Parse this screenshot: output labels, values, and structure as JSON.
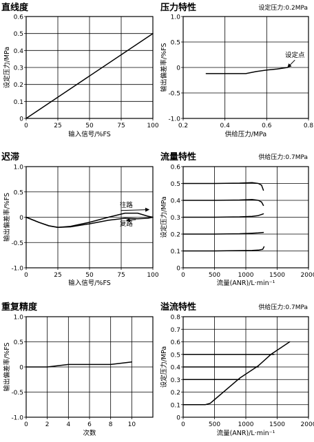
{
  "chart_data": [
    {
      "id": "linearity",
      "type": "line",
      "title": "直线度",
      "condition": "",
      "xlabel": "输入信号/%FS",
      "ylabel": "设定压力/MPa",
      "xlim": [
        0,
        100
      ],
      "ylim": [
        0,
        0.6
      ],
      "xticks": [
        "0",
        "25",
        "50",
        "75",
        "100"
      ],
      "yticks": [
        "0",
        "0.1",
        "0.2",
        "0.3",
        "0.4",
        "0.5",
        "0.6"
      ],
      "grid": true,
      "series": [
        {
          "points": [
            [
              0,
              0.0
            ],
            [
              100,
              0.5
            ]
          ]
        }
      ],
      "annotations": []
    },
    {
      "id": "pressure",
      "type": "line",
      "title": "压力特性",
      "condition": "设定压力:0.2MPa",
      "xlabel": "供给压力/MPa",
      "ylabel": "输出偏差率/%FS",
      "xlim": [
        0.2,
        0.8
      ],
      "ylim": [
        -1.0,
        1.0
      ],
      "xticks": [
        "0.2",
        "0.4",
        "0.6",
        "0.8"
      ],
      "yticks": [
        "-1.0",
        "-0.5",
        "0",
        "0.5",
        "1.0"
      ],
      "grid": true,
      "series": [
        {
          "points": [
            [
              0.31,
              -0.12
            ],
            [
              0.5,
              -0.12
            ],
            [
              0.55,
              -0.08
            ],
            [
              0.6,
              -0.05
            ],
            [
              0.65,
              -0.03
            ],
            [
              0.7,
              0.0
            ]
          ]
        }
      ],
      "annotations": [
        {
          "text": "设定点",
          "at": [
            0.7,
            0.0
          ],
          "text_at": [
            0.735,
            0.2
          ]
        }
      ]
    },
    {
      "id": "hysteresis",
      "type": "line",
      "title": "迟滞",
      "condition": "",
      "xlabel": "输入信号/%FS",
      "ylabel": "输出偏差率/%FS",
      "xlim": [
        0,
        100
      ],
      "ylim": [
        -1.0,
        1.0
      ],
      "xticks": [
        "0",
        "25",
        "50",
        "75",
        "100"
      ],
      "yticks": [
        "-1.0",
        "-0.5",
        "0",
        "0.5",
        "1.0"
      ],
      "grid": true,
      "series": [
        {
          "points": [
            [
              0,
              0.0
            ],
            [
              10,
              -0.1
            ],
            [
              18,
              -0.17
            ],
            [
              25,
              -0.2
            ],
            [
              35,
              -0.18
            ],
            [
              50,
              -0.1
            ],
            [
              65,
              0.0
            ],
            [
              78,
              0.08
            ],
            [
              88,
              0.08
            ],
            [
              96,
              0.02
            ],
            [
              100,
              0.0
            ]
          ]
        },
        {
          "points": [
            [
              0,
              0.0
            ],
            [
              10,
              -0.1
            ],
            [
              18,
              -0.17
            ],
            [
              25,
              -0.2
            ],
            [
              35,
              -0.19
            ],
            [
              50,
              -0.13
            ],
            [
              65,
              -0.06
            ],
            [
              78,
              -0.02
            ],
            [
              88,
              -0.03
            ],
            [
              96,
              -0.02
            ],
            [
              100,
              0.0
            ]
          ]
        }
      ],
      "annotations": [
        {
          "text": "往路",
          "at": [
            97,
            0.15
          ],
          "text_at": [
            79,
            0.2
          ]
        },
        {
          "text": "复路",
          "at": [
            79,
            -0.06
          ],
          "text_at": [
            79,
            -0.17
          ]
        }
      ]
    },
    {
      "id": "flow",
      "type": "line",
      "title": "流量特性",
      "condition": "供给压力:0.7MPa",
      "xlabel": "流量(ANR)/L·min⁻¹",
      "ylabel": "设定压力/MPa",
      "xlim": [
        0,
        2000
      ],
      "ylim": [
        0,
        0.6
      ],
      "xticks": [
        "0",
        "500",
        "1000",
        "1500",
        "2000"
      ],
      "yticks": [
        "0",
        "0.1",
        "0.2",
        "0.3",
        "0.4",
        "0.5",
        "0.6"
      ],
      "grid": true,
      "series": [
        {
          "points": [
            [
              0,
              0.5
            ],
            [
              500,
              0.5
            ],
            [
              900,
              0.502
            ],
            [
              1100,
              0.505
            ],
            [
              1200,
              0.5
            ],
            [
              1250,
              0.49
            ],
            [
              1280,
              0.46
            ]
          ]
        },
        {
          "points": [
            [
              0,
              0.4
            ],
            [
              500,
              0.4
            ],
            [
              900,
              0.402
            ],
            [
              1100,
              0.405
            ],
            [
              1200,
              0.4
            ],
            [
              1250,
              0.39
            ],
            [
              1280,
              0.37
            ]
          ]
        },
        {
          "points": [
            [
              0,
              0.3
            ],
            [
              500,
              0.3
            ],
            [
              900,
              0.302
            ],
            [
              1100,
              0.305
            ],
            [
              1200,
              0.31
            ],
            [
              1280,
              0.32
            ]
          ]
        },
        {
          "points": [
            [
              0,
              0.2
            ],
            [
              500,
              0.2
            ],
            [
              900,
              0.202
            ],
            [
              1100,
              0.205
            ],
            [
              1200,
              0.207
            ],
            [
              1280,
              0.21
            ]
          ]
        },
        {
          "points": [
            [
              0,
              0.1
            ],
            [
              500,
              0.1
            ],
            [
              900,
              0.102
            ],
            [
              1100,
              0.103
            ],
            [
              1200,
              0.105
            ],
            [
              1270,
              0.11
            ],
            [
              1290,
              0.125
            ]
          ]
        }
      ],
      "annotations": []
    },
    {
      "id": "repeatability",
      "type": "line",
      "title": "重复精度",
      "condition": "",
      "xlabel": "次数",
      "ylabel": "输出偏差率/%FS",
      "xlim": [
        0,
        12
      ],
      "ylim": [
        -1.0,
        1.0
      ],
      "xticks": [
        "0",
        "2",
        "4",
        "6",
        "8",
        "10"
      ],
      "yticks": [
        "-1.0",
        "-0.5",
        "0",
        "0.5",
        "1.0"
      ],
      "grid": true,
      "series": [
        {
          "points": [
            [
              0,
              0.0
            ],
            [
              2,
              0.0
            ],
            [
              4,
              0.05
            ],
            [
              6,
              0.05
            ],
            [
              8,
              0.05
            ],
            [
              10,
              0.1
            ]
          ]
        }
      ],
      "annotations": []
    },
    {
      "id": "relief",
      "type": "line",
      "title": "溢流特性",
      "condition": "供给压力:0.7MPa",
      "xlabel": "流量(ANR)/L·min⁻¹",
      "ylabel": "设定压力/MPa",
      "xlim": [
        0,
        2000
      ],
      "ylim": [
        0,
        0.8
      ],
      "xticks": [
        "0",
        "500",
        "1000",
        "1500",
        "2000"
      ],
      "yticks": [
        "0",
        "0.1",
        "0.2",
        "0.3",
        "0.4",
        "0.5",
        "0.6",
        "0.7",
        "0.8"
      ],
      "grid": true,
      "series": [
        {
          "points": [
            [
              0,
              0.1
            ],
            [
              350,
              0.1
            ],
            [
              430,
              0.11
            ],
            [
              500,
              0.14
            ],
            [
              900,
              0.31
            ],
            [
              1200,
              0.41
            ],
            [
              1400,
              0.5
            ],
            [
              1550,
              0.55
            ],
            [
              1700,
              0.6
            ]
          ]
        },
        {
          "points": [
            [
              0,
              0.3
            ],
            [
              900,
              0.3
            ]
          ]
        },
        {
          "points": [
            [
              0,
              0.4
            ],
            [
              1200,
              0.4
            ]
          ]
        },
        {
          "points": [
            [
              0,
              0.5
            ],
            [
              1450,
              0.5
            ]
          ]
        }
      ],
      "annotations": []
    }
  ]
}
